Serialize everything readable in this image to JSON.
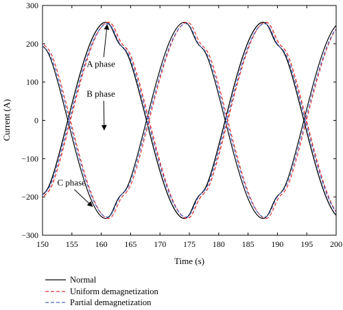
{
  "chart_data": {
    "type": "line",
    "title": "",
    "xlabel": "Time (s)",
    "ylabel": "Current (A)",
    "xlim": [
      150,
      200
    ],
    "ylim": [
      -300,
      300
    ],
    "x_ticks": [
      150,
      155,
      160,
      165,
      170,
      175,
      180,
      185,
      190,
      195,
      200
    ],
    "y_ticks": [
      -300,
      -200,
      -100,
      0,
      100,
      200,
      300
    ],
    "x_tick_labels": [
      "150",
      "155",
      "160",
      "165",
      "170",
      "175",
      "180",
      "185",
      "190",
      "195",
      "200"
    ],
    "y_tick_labels": [
      "−300",
      "−200",
      "−100",
      "0",
      "100",
      "200",
      "300"
    ],
    "grid": false,
    "legend_position": "bottom-left, below plot",
    "annotations": [
      {
        "text": "A phase",
        "point_to": [
          161,
          250
        ],
        "label_at": [
          157.5,
          140
        ]
      },
      {
        "text": "B phase",
        "point_to": [
          160.5,
          -25
        ],
        "label_at": [
          157.5,
          62
        ]
      },
      {
        "text": "C phase",
        "point_to": [
          158.5,
          -225
        ],
        "label_at": [
          152.5,
          -170
        ]
      }
    ],
    "phase_model": {
      "period_s": 26.8,
      "amplitude_A": 258,
      "phase_peaks_s": {
        "A": 161.0,
        "B": 187.8,
        "C": 174.4
      },
      "dip_depth_A": 32
    },
    "series": [
      {
        "name": "Normal",
        "color": "#000000",
        "dash": "solid",
        "time_shift_s": 0.0,
        "amplitude_scale": 1.0
      },
      {
        "name": "Uniform demagnetization",
        "color": "#e03030",
        "dash": "dashed",
        "time_shift_s": 0.45,
        "amplitude_scale": 1.0
      },
      {
        "name": "Partial demagnetization",
        "color": "#4a68c8",
        "dash": "dashed",
        "time_shift_s": 0.25,
        "amplitude_scale": 0.985
      }
    ]
  },
  "legend": {
    "items": [
      {
        "label": "Normal",
        "color": "#000000",
        "dash": "solid"
      },
      {
        "label": "Uniform demagnetization",
        "color": "#e03030",
        "dash": "dashed"
      },
      {
        "label": "Partial demagnetization",
        "color": "#4a68c8",
        "dash": "dashed"
      }
    ]
  }
}
